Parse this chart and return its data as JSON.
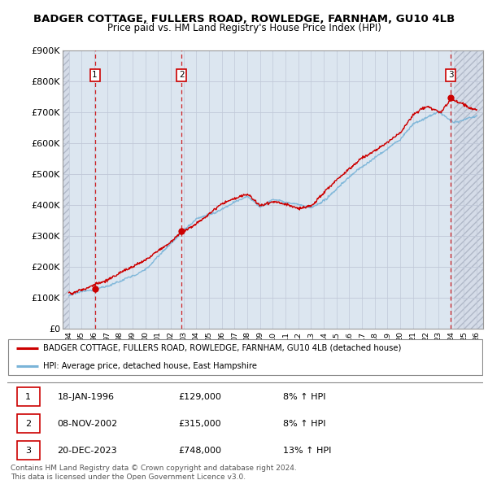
{
  "title": "BADGER COTTAGE, FULLERS ROAD, ROWLEDGE, FARNHAM, GU10 4LB",
  "subtitle": "Price paid vs. HM Land Registry's House Price Index (HPI)",
  "ylim": [
    0,
    900000
  ],
  "yticks": [
    0,
    100000,
    200000,
    300000,
    400000,
    500000,
    600000,
    700000,
    800000,
    900000
  ],
  "ytick_labels": [
    "£0",
    "£100K",
    "£200K",
    "£300K",
    "£400K",
    "£500K",
    "£600K",
    "£700K",
    "£800K",
    "£900K"
  ],
  "xlim_start": 1993.5,
  "xlim_end": 2026.5,
  "data_start": 1994,
  "data_end": 2024.2,
  "sale_dates": [
    1996.04,
    2002.85,
    2023.97
  ],
  "sale_prices": [
    129000,
    315000,
    748000
  ],
  "sale_labels": [
    "1",
    "2",
    "3"
  ],
  "hpi_line_color": "#7ab4d8",
  "sale_line_color": "#cc0000",
  "sale_dot_color": "#cc0000",
  "dashed_line_color": "#cc0000",
  "hatch_bg_color": "#d5dce8",
  "plot_bg_color": "#dce6f0",
  "grid_color": "#c0c8d8",
  "legend_line1": "BADGER COTTAGE, FULLERS ROAD, ROWLEDGE, FARNHAM, GU10 4LB (detached house)",
  "legend_line2": "HPI: Average price, detached house, East Hampshire",
  "table_rows": [
    [
      "1",
      "18-JAN-1996",
      "£129,000",
      "8% ↑ HPI"
    ],
    [
      "2",
      "08-NOV-2002",
      "£315,000",
      "8% ↑ HPI"
    ],
    [
      "3",
      "20-DEC-2023",
      "£748,000",
      "13% ↑ HPI"
    ]
  ],
  "footnote": "Contains HM Land Registry data © Crown copyright and database right 2024.\nThis data is licensed under the Open Government Licence v3.0.",
  "title_fontsize": 9.5,
  "subtitle_fontsize": 8.5,
  "axis_fontsize": 8,
  "xtick_years": [
    1994,
    1995,
    1996,
    1997,
    1998,
    1999,
    2000,
    2001,
    2002,
    2003,
    2004,
    2005,
    2006,
    2007,
    2008,
    2009,
    2010,
    2011,
    2012,
    2013,
    2014,
    2015,
    2016,
    2017,
    2018,
    2019,
    2020,
    2021,
    2022,
    2023,
    2024,
    2025,
    2026
  ],
  "xtick_labels": [
    "94",
    "95",
    "96",
    "97",
    "98",
    "99",
    "00",
    "01",
    "02",
    "03",
    "04",
    "05",
    "06",
    "07",
    "08",
    "09",
    "10",
    "11",
    "12",
    "13",
    "14",
    "15",
    "16",
    "17",
    "18",
    "19",
    "20",
    "21",
    "22",
    "23",
    "24",
    "25",
    "26"
  ]
}
